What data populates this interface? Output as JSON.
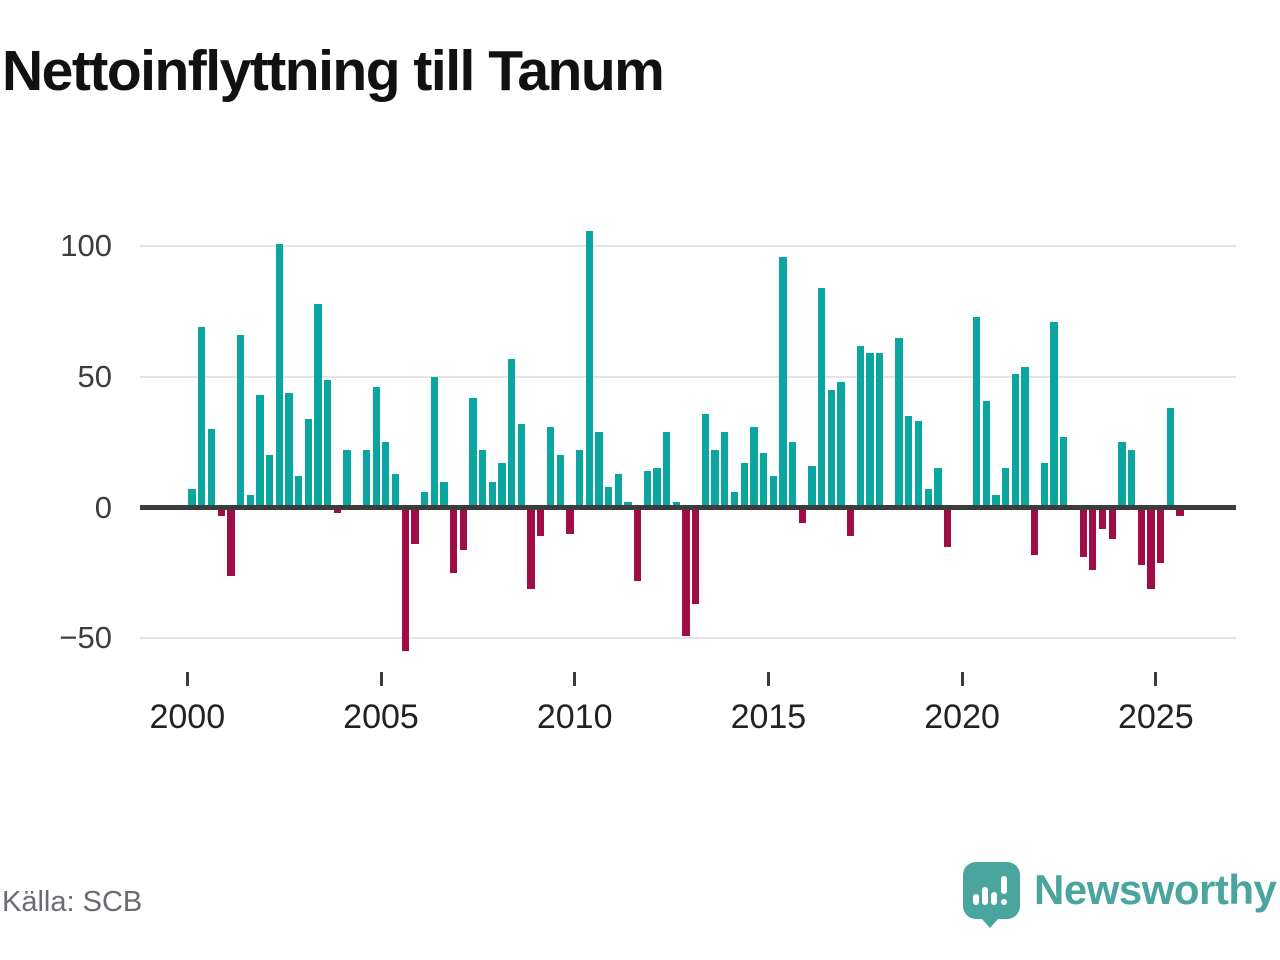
{
  "title": "Nettoinflyttning till Tanum",
  "source": "Källa: SCB",
  "brand": {
    "name": "Newsworthy",
    "color": "#4aa59f"
  },
  "colors": {
    "positive_bar": "#0ba69f",
    "negative_bar": "#a00d46",
    "gridline": "#e4e4e4",
    "zero_axis": "#3c3c3c",
    "title_text": "#111111",
    "axis_label_text": "#3d3d3d",
    "source_text": "#6b6b72"
  },
  "chart_data": {
    "type": "bar",
    "title": "Nettoinflyttning till Tanum",
    "frequency": "quarterly",
    "start_period": "2000 Q1",
    "end_period": "2025 Q3",
    "values": [
      7,
      69,
      30,
      -3,
      -26,
      66,
      5,
      43,
      20,
      101,
      44,
      12,
      34,
      78,
      49,
      -2,
      22,
      0,
      22,
      46,
      25,
      13,
      -55,
      -14,
      6,
      50,
      10,
      -25,
      -16,
      42,
      22,
      10,
      17,
      57,
      32,
      -31,
      -11,
      31,
      20,
      -10,
      22,
      106,
      29,
      8,
      13,
      2,
      -28,
      14,
      15,
      29,
      2,
      -49,
      -37,
      36,
      22,
      29,
      6,
      17,
      31,
      21,
      12,
      96,
      25,
      -6,
      16,
      84,
      45,
      48,
      -11,
      62,
      59,
      59,
      0,
      65,
      35,
      33,
      7,
      15,
      -15,
      0,
      0,
      73,
      41,
      5,
      15,
      51,
      54,
      -18,
      17,
      71,
      27,
      0,
      -19,
      -24,
      -8,
      -12,
      25,
      22,
      -22,
      -31,
      -21,
      38,
      -3
    ],
    "x_ticks": [
      {
        "year": 2000,
        "label": "2000"
      },
      {
        "year": 2005,
        "label": "2005"
      },
      {
        "year": 2010,
        "label": "2010"
      },
      {
        "year": 2015,
        "label": "2015"
      },
      {
        "year": 2020,
        "label": "2020"
      },
      {
        "year": 2025,
        "label": "2025"
      }
    ],
    "y_ticks": [
      {
        "value": 100,
        "label": "100"
      },
      {
        "value": 50,
        "label": "50"
      },
      {
        "value": 0,
        "label": "0"
      },
      {
        "value": -50,
        "label": "−50"
      }
    ],
    "ylim": [
      -60,
      110
    ],
    "grid": "horizontal-only",
    "legend": "none"
  }
}
